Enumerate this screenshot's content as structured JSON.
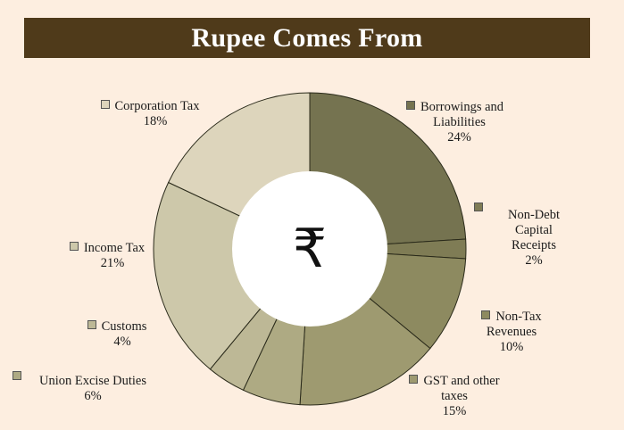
{
  "header": {
    "title": "Rupee Comes From"
  },
  "center_symbol": "₹",
  "chart_data": {
    "type": "pie",
    "title": "Rupee Comes From",
    "donut": true,
    "slices": [
      {
        "label": "Borrowings and Liabilities",
        "value": 24,
        "value_label": "24%",
        "color": "#757350"
      },
      {
        "label": "Non-Debt Capital Receipts",
        "value": 2,
        "value_label": "2%",
        "color": "#7f7c55"
      },
      {
        "label": "Non-Tax Revenues",
        "value": 10,
        "value_label": "10%",
        "color": "#8d8a60"
      },
      {
        "label": "GST and other taxes",
        "value": 15,
        "value_label": "15%",
        "color": "#9e9a70"
      },
      {
        "label": "Union Excise Duties",
        "value": 6,
        "value_label": "6%",
        "color": "#aeaa83"
      },
      {
        "label": "Customs",
        "value": 4,
        "value_label": "4%",
        "color": "#bdb896"
      },
      {
        "label": "Income Tax",
        "value": 21,
        "value_label": "21%",
        "color": "#cdc8aa"
      },
      {
        "label": "Corporation Tax",
        "value": 18,
        "value_label": "18%",
        "color": "#ddd5bc"
      }
    ]
  },
  "labels": {
    "borrowings": {
      "line1": "Borrowings and",
      "line2": "Liabilities",
      "pct": "24%"
    },
    "nondebt": {
      "line1": "Non-Debt",
      "line2": "Capital",
      "line3": "Receipts",
      "pct": "2%"
    },
    "nontax": {
      "line1": "Non-Tax",
      "line2": "Revenues",
      "pct": "10%"
    },
    "gst": {
      "line1": "GST and other",
      "line2": "taxes",
      "pct": "15%"
    },
    "excise": {
      "line1": "Union Excise Duties",
      "pct": "6%"
    },
    "customs": {
      "line1": "Customs",
      "pct": "4%"
    },
    "income": {
      "line1": "Income Tax",
      "pct": "21%"
    },
    "corporation": {
      "line1": "Corporation Tax",
      "pct": "18%"
    }
  }
}
